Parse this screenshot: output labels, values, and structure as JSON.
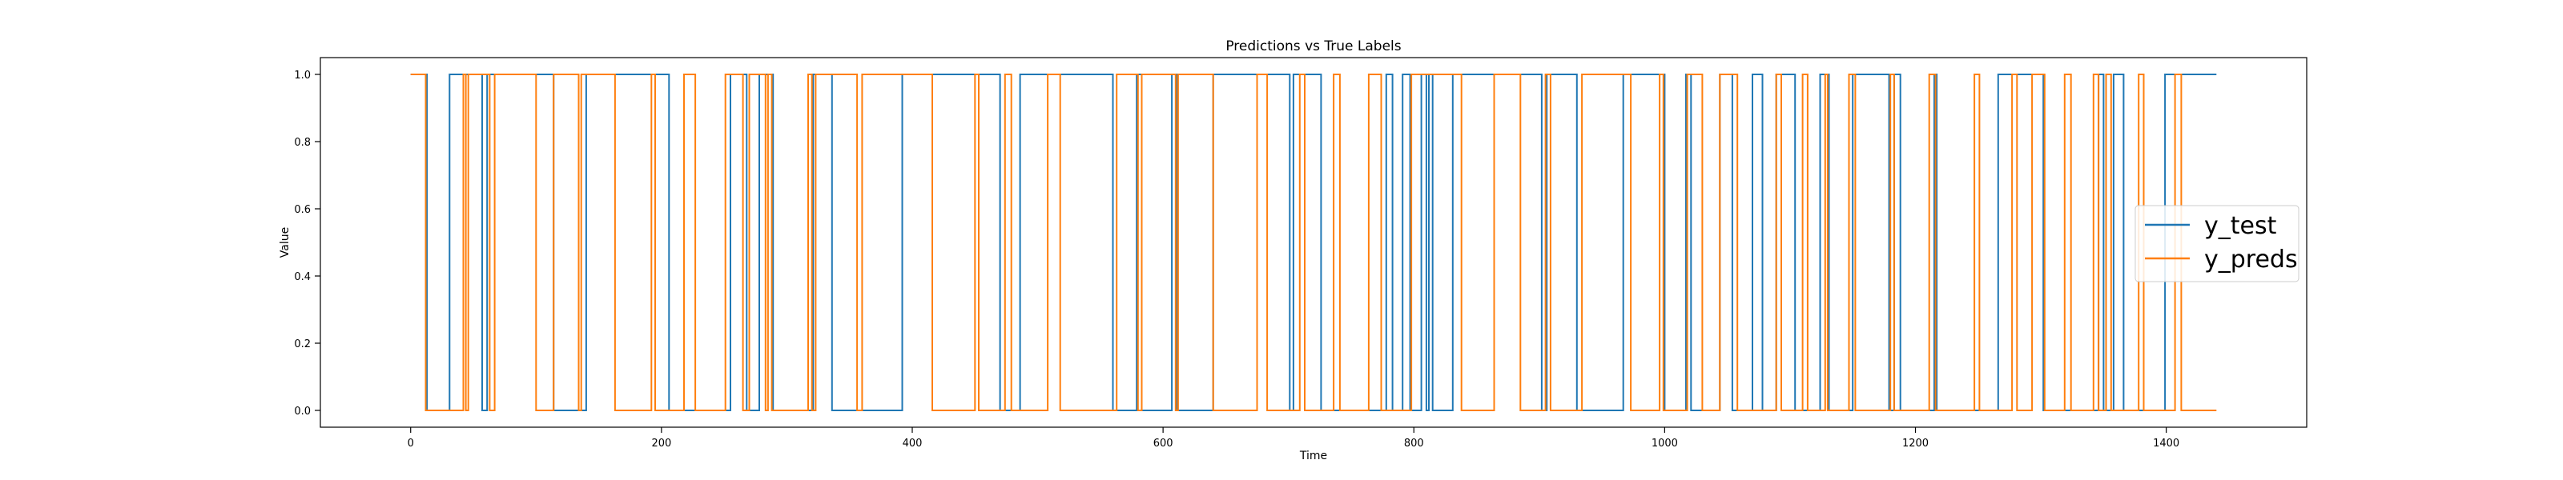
{
  "chart_data": {
    "type": "line",
    "title": "Predictions vs True Labels",
    "xlabel": "Time",
    "ylabel": "Value",
    "xlim": [
      -72,
      1512
    ],
    "ylim": [
      -0.05,
      1.05
    ],
    "xticks": [
      0,
      200,
      400,
      600,
      800,
      1000,
      1200,
      1400
    ],
    "yticks": [
      0.0,
      0.2,
      0.4,
      0.6,
      0.8,
      1.0
    ],
    "ytick_labels": [
      "0.0",
      "0.2",
      "0.4",
      "0.6",
      "0.8",
      "1.0"
    ],
    "legend_position": "center-right",
    "series": [
      {
        "name": "y_test",
        "color": "#1f77b4",
        "x_end": 1440,
        "initial": 1,
        "transitions": [
          13,
          31,
          57,
          61,
          114,
          140,
          206,
          255,
          268,
          278,
          289,
          321,
          336,
          392,
          470,
          486,
          560,
          579,
          583,
          607,
          611,
          640,
          701,
          704,
          726,
          778,
          783,
          791,
          797,
          806,
          810,
          812,
          815,
          831,
          902,
          906,
          930,
          967,
          1000,
          1017,
          1021,
          1044,
          1054,
          1070,
          1078,
          1089,
          1104,
          1124,
          1131,
          1150,
          1179,
          1183,
          1188,
          1215,
          1217,
          1266,
          1302,
          1346,
          1350,
          1358,
          1366,
          1399
        ]
      },
      {
        "name": "y_preds",
        "color": "#ff7f0e",
        "x_end": 1440,
        "initial": 1,
        "transitions": [
          12,
          42,
          44,
          46,
          63,
          67,
          100,
          114,
          134,
          136,
          163,
          192,
          195,
          218,
          227,
          251,
          265,
          270,
          283,
          285,
          288,
          317,
          320,
          323,
          356,
          360,
          416,
          450,
          453,
          474,
          479,
          508,
          518,
          563,
          580,
          583,
          610,
          612,
          640,
          675,
          683,
          709,
          713,
          736,
          741,
          764,
          774,
          798,
          838,
          864,
          885,
          905,
          909,
          934,
          973,
          996,
          999,
          1018,
          1030,
          1044,
          1058,
          1089,
          1093,
          1110,
          1114,
          1128,
          1130,
          1147,
          1152,
          1180,
          1183,
          1211,
          1216,
          1247,
          1251,
          1277,
          1281,
          1293,
          1303,
          1319,
          1324,
          1342,
          1346,
          1352,
          1356,
          1378,
          1382,
          1407,
          1412
        ]
      }
    ]
  }
}
